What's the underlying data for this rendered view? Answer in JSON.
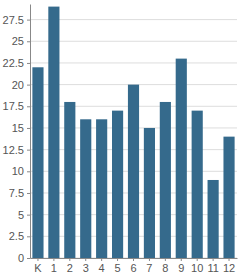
{
  "chart_data": {
    "type": "bar",
    "categories": [
      "K",
      "1",
      "2",
      "3",
      "4",
      "5",
      "6",
      "7",
      "8",
      "9",
      "10",
      "11",
      "12"
    ],
    "values": [
      22,
      29,
      18,
      16,
      16,
      17,
      20,
      15,
      18,
      23,
      17,
      9,
      14
    ],
    "color": "#356a8c",
    "ylim": [
      0,
      29.3
    ],
    "yticks": [
      0,
      2.5,
      5,
      7.5,
      10,
      12.5,
      15,
      17.5,
      20,
      22.5,
      25,
      27.5
    ],
    "grid": true
  }
}
